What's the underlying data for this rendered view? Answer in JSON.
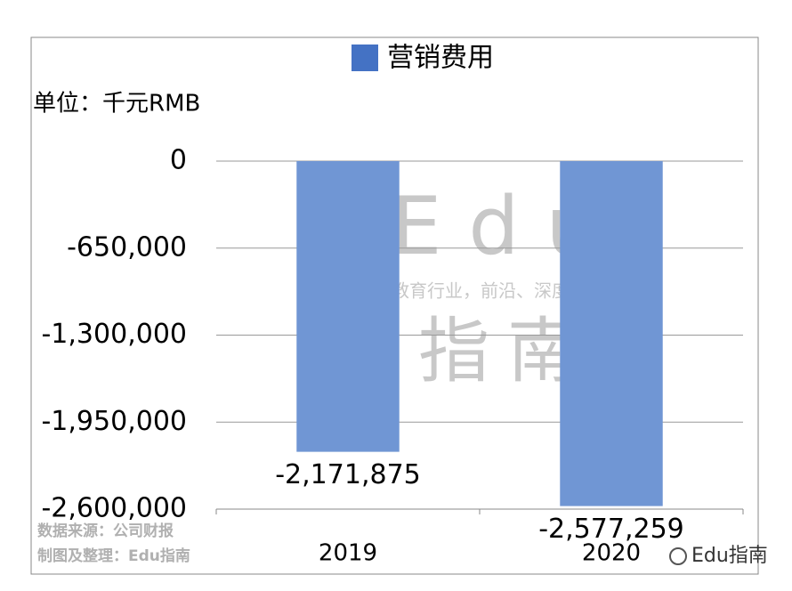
{
  "chart_data": {
    "type": "bar",
    "legend": "营销费用",
    "unit_label": "单位：千元RMB",
    "categories": [
      "2019",
      "2020"
    ],
    "series": [
      {
        "name": "营销费用",
        "color": "#7096d4",
        "values": [
          -2171875,
          -2577259
        ],
        "value_labels": [
          "-2,171,875",
          "-2,577,259"
        ]
      }
    ],
    "ylim": [
      -2600000,
      0
    ],
    "yticks": [
      0,
      {
        "value": -650000,
        "label": "-650,000"
      },
      {
        "value": -1300000,
        "label": "-1,300,000"
      },
      {
        "value": -1950000,
        "label": "-1,950,000"
      },
      {
        "value": -2600000,
        "label": "-2,600,000"
      }
    ],
    "grid": true,
    "annotations": [
      "Edu",
      "教育行业，前沿、深度、独家",
      "指南",
      "数据来源：公司财报",
      "制图及整理：Edu指南",
      "Edu指南"
    ]
  }
}
